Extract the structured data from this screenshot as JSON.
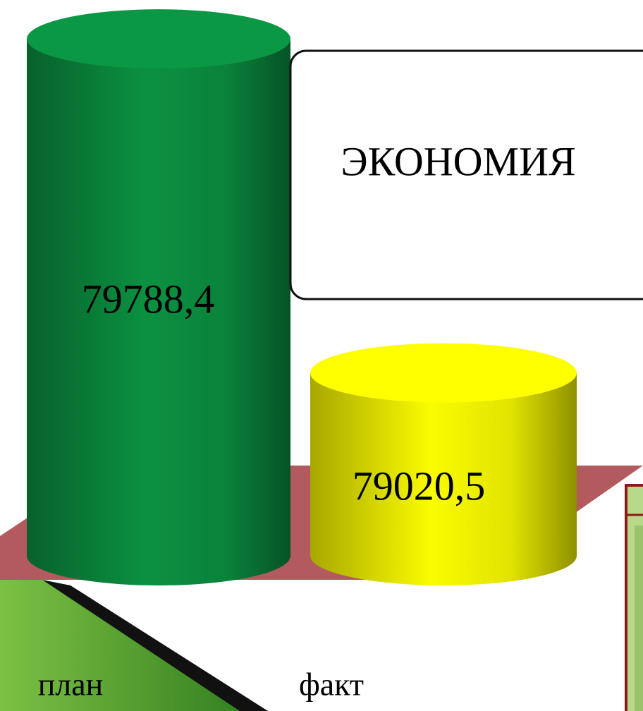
{
  "chart_data": {
    "type": "cylinder-bar",
    "annotation": "ЭКОНОМИЯ",
    "categories": [
      "план",
      "факт"
    ],
    "values": [
      79788.4,
      79020.5
    ],
    "value_labels": [
      "79788,4",
      "79020,5"
    ],
    "colors": [
      "#0a8a3e",
      "#eef000"
    ],
    "ylim": [
      78600,
      79800
    ]
  }
}
